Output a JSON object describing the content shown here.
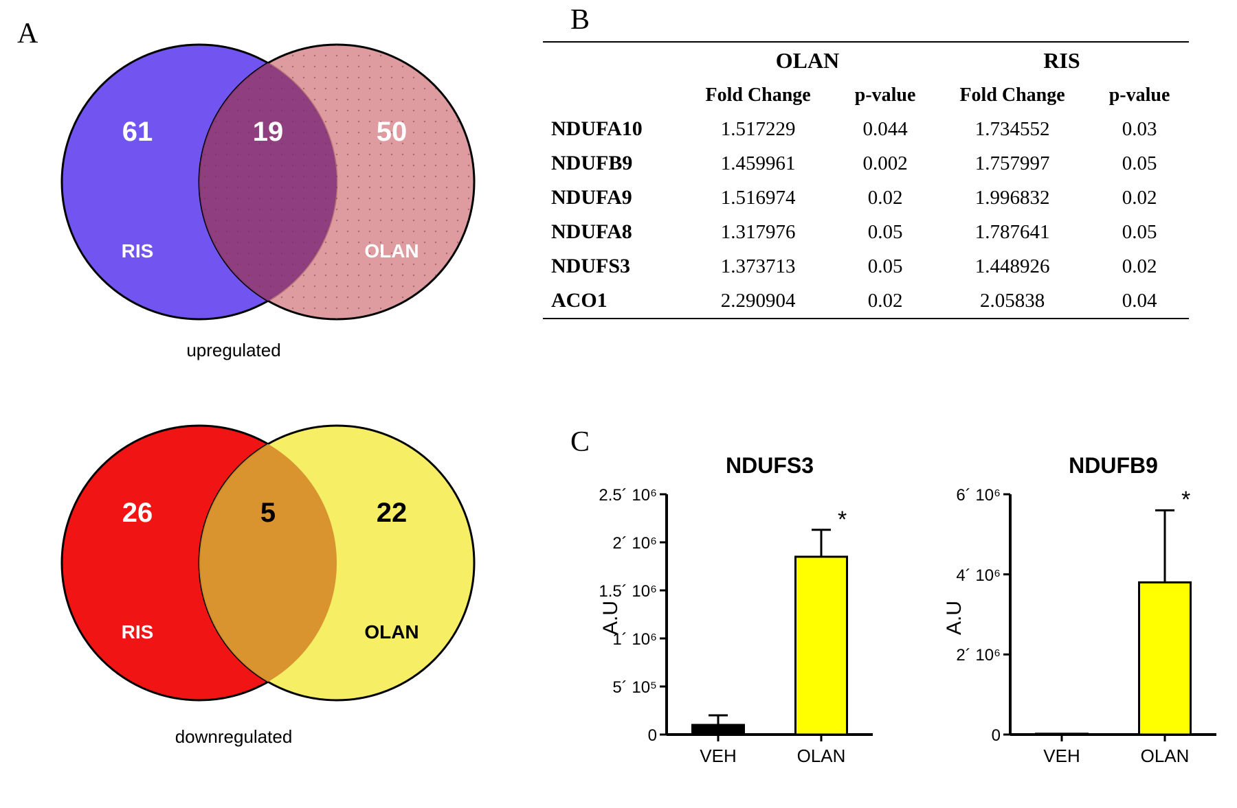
{
  "labels": {
    "A": "A",
    "B": "B",
    "C": "C"
  },
  "venn_up": {
    "left_count": "61",
    "overlap_count": "19",
    "right_count": "50",
    "left_label": "RIS",
    "right_label": "OLAN",
    "caption": "upregulated",
    "left_fill": "#6a4cf0",
    "right_fill": "#d88a8f",
    "overlap_fill": "#8c3a7d",
    "left_opacity": 0.95,
    "right_opacity": 0.85,
    "stroke": "#000000",
    "text_color": "#ffffff"
  },
  "venn_down": {
    "left_count": "26",
    "overlap_count": "5",
    "right_count": "22",
    "left_label": "RIS",
    "right_label": "OLAN",
    "caption": "downregulated",
    "left_fill": "#f01414",
    "right_fill": "#f6ee64",
    "overlap_fill": "#d88e2c",
    "stroke": "#000000",
    "text_color_left": "#ffffff",
    "text_color_right": "#000000",
    "text_color_mid": "#000000"
  },
  "table": {
    "group_headers": [
      "OLAN",
      "RIS"
    ],
    "sub_headers": [
      "Fold Change",
      "p-value",
      "Fold Change",
      "p-value"
    ],
    "rows": [
      {
        "label": "NDUFA10",
        "vals": [
          "1.517229",
          "0.044",
          "1.734552",
          "0.03"
        ]
      },
      {
        "label": "NDUFB9",
        "vals": [
          "1.459961",
          "0.002",
          "1.757997",
          "0.05"
        ]
      },
      {
        "label": "NDUFA9",
        "vals": [
          "1.516974",
          "0.02",
          "1.996832",
          "0.02"
        ]
      },
      {
        "label": "NDUFA8",
        "vals": [
          "1.317976",
          "0.05",
          "1.787641",
          "0.05"
        ]
      },
      {
        "label": "NDUFS3",
        "vals": [
          "1.373713",
          "0.05",
          "1.448926",
          "0.02"
        ]
      },
      {
        "label": "ACO1",
        "vals": [
          "2.290904",
          "0.02",
          "2.05838",
          "0.04"
        ]
      }
    ]
  },
  "chart1": {
    "title": "NDUFS3",
    "y_label": "A.U",
    "y_ticks": [
      "0",
      "5´ 10⁵",
      "1´ 10⁶",
      "1.5´ 10⁶",
      "2´ 10⁶",
      "2.5´ 10⁶"
    ],
    "y_max": 2500000,
    "categories": [
      "VEH",
      "OLAN"
    ],
    "values": [
      100000,
      1850000
    ],
    "errors": [
      100000,
      280000
    ],
    "colors": [
      "#000000",
      "#ffff00"
    ],
    "sig_mark": "*",
    "sig_over": 1,
    "axis_color": "#000000",
    "bg": "#ffffff"
  },
  "chart2": {
    "title": "NDUFB9",
    "y_label": "A.U",
    "y_ticks": [
      "0",
      "2´ 10⁶",
      "4´ 10⁶",
      "6´ 10⁶"
    ],
    "y_max": 6000000,
    "categories": [
      "VEH",
      "OLAN"
    ],
    "values": [
      20000,
      3800000
    ],
    "errors": [
      0,
      1800000
    ],
    "colors": [
      "#000000",
      "#ffff00"
    ],
    "sig_mark": "*",
    "sig_over": 1,
    "axis_color": "#000000",
    "bg": "#ffffff"
  }
}
